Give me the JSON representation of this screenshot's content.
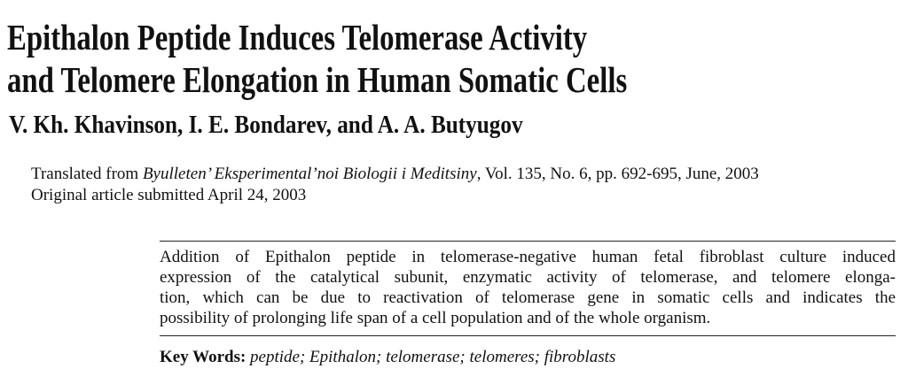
{
  "header": {
    "title_lines": [
      "Epithalon Peptide Induces Telomerase Activity",
      "and Telomere Elongation in Human Somatic Cells"
    ],
    "authors": "V. Kh. Khavinson, I. E. Bondarev, and A. A. Butyugov"
  },
  "source": {
    "translated_prefix": "Translated from",
    "journal": "Byulleten’ Eksperimental’noi Biologii i Meditsiny",
    "details": ", Vol. 135, No. 6, pp. 692-695, June, 2003",
    "submitted": "Original article submitted April 24, 2003"
  },
  "abstract": {
    "lines": [
      "Addition of Epithalon peptide in telomerase-negative human fetal fibroblast culture induced",
      "expression of the catalytical subunit, enzymatic activity of telomerase, and telomere elonga-",
      "tion, which can be due to reactivation of telomerase gene in somatic cells and indicates the",
      "possibility of prolonging life span of a cell population and of the whole organism."
    ]
  },
  "keywords": {
    "label": "Key Words:",
    "text": "peptide; Epithalon; telomerase; telomeres; fibroblasts"
  }
}
